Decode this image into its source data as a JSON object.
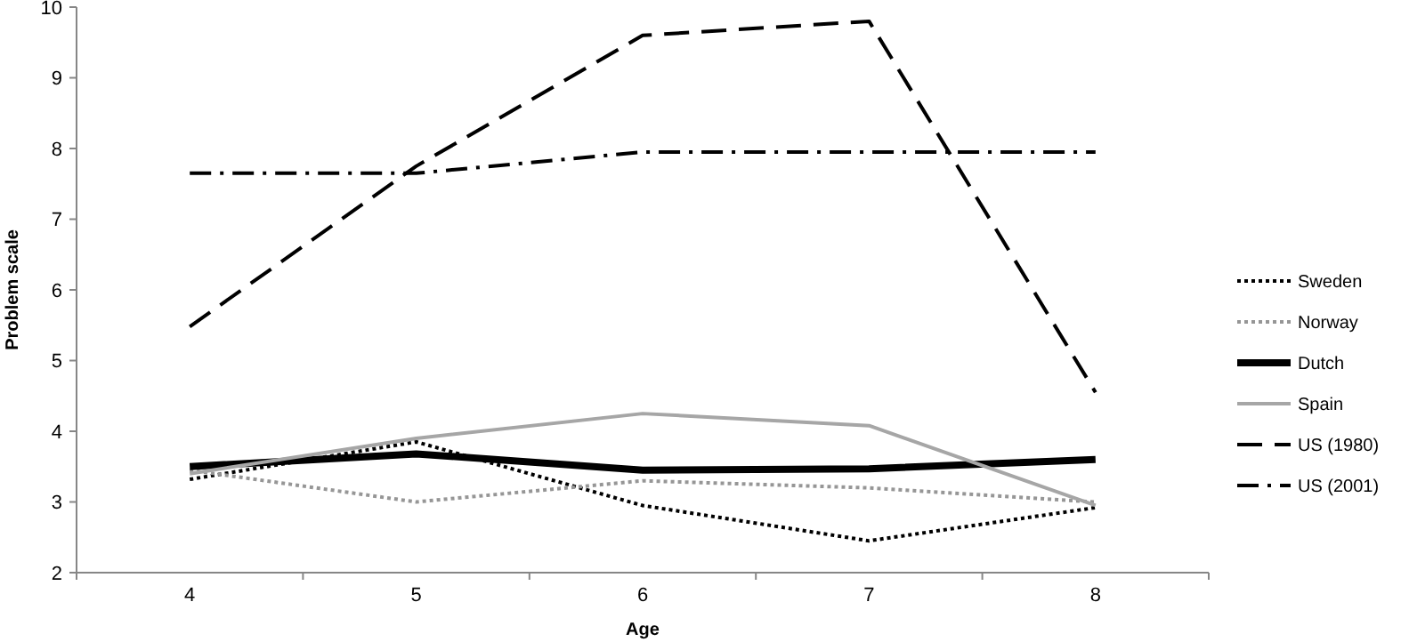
{
  "chart_data": {
    "type": "line",
    "xlabel": "Age",
    "ylabel": "Problem scale",
    "categories": [
      "4",
      "5",
      "6",
      "7",
      "8"
    ],
    "ylim": [
      2,
      10
    ],
    "yticks": [
      2,
      3,
      4,
      5,
      6,
      7,
      8,
      9,
      10
    ],
    "grid": false,
    "legend": "right",
    "marker": "none",
    "series": [
      {
        "name": "Sweden",
        "color": "#000000",
        "line_style": "dotted",
        "values": [
          3.32,
          3.85,
          2.95,
          2.45,
          2.92
        ]
      },
      {
        "name": "Norway",
        "color": "#969696",
        "line_style": "dotted",
        "values": [
          3.45,
          3.0,
          3.3,
          3.2,
          3.0
        ]
      },
      {
        "name": "Dutch",
        "color": "#000000",
        "line_style": "solid",
        "values": [
          3.5,
          3.68,
          3.45,
          3.47,
          3.6
        ]
      },
      {
        "name": "Spain",
        "color": "#a6a6a6",
        "line_style": "solid",
        "values": [
          3.4,
          3.9,
          4.25,
          4.08,
          2.95
        ]
      },
      {
        "name": "US (1980)",
        "color": "#000000",
        "line_style": "dashed",
        "values": [
          5.48,
          7.75,
          9.6,
          9.8,
          4.55
        ]
      },
      {
        "name": "US (2001)",
        "color": "#000000",
        "line_style": "dashdot",
        "values": [
          7.65,
          7.65,
          7.95,
          7.95,
          7.95
        ]
      }
    ]
  }
}
